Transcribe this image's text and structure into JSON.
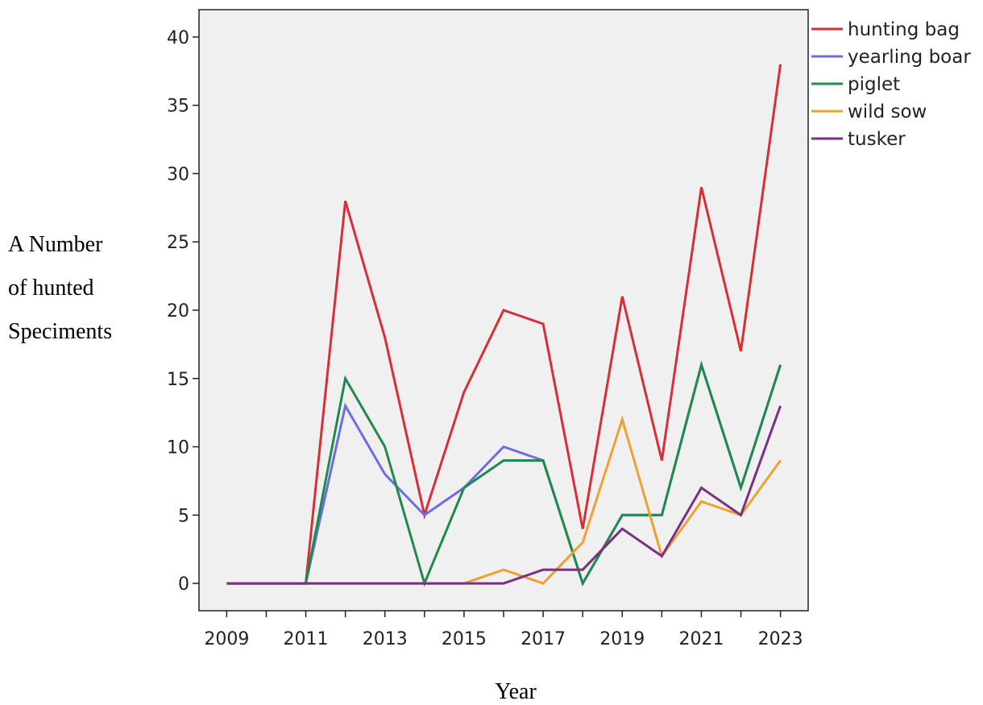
{
  "chart_data": {
    "type": "line",
    "title": "",
    "xlabel": "Year",
    "ylabel_lines": [
      "A Number",
      "of hunted",
      "Speciments"
    ],
    "x": [
      2009,
      2010,
      2011,
      2012,
      2013,
      2014,
      2015,
      2016,
      2017,
      2018,
      2019,
      2020,
      2021,
      2022,
      2023
    ],
    "x_tick_labels": [
      "2009",
      "2011",
      "2013",
      "2015",
      "2017",
      "2019",
      "2021",
      "2023"
    ],
    "y_tick_labels": [
      "0",
      "5",
      "10",
      "15",
      "20",
      "25",
      "30",
      "35",
      "40"
    ],
    "ylim": [
      -2,
      42
    ],
    "xlim": [
      2008.3,
      2023.7
    ],
    "grid": false,
    "legend_placement": "right",
    "background_color": "#f0f0f0",
    "series": [
      {
        "name": "hunting bag",
        "color": "#d62f36",
        "values": [
          0,
          0,
          0,
          28,
          18,
          5,
          14,
          20,
          19,
          4,
          21,
          9,
          29,
          17,
          38
        ]
      },
      {
        "name": "yearling boar",
        "color": "#6b6de6",
        "values": [
          0,
          0,
          0,
          13,
          8,
          5,
          7,
          10,
          9,
          0,
          5,
          5,
          16,
          7,
          16
        ]
      },
      {
        "name": "piglet",
        "color": "#1f8a4c",
        "values": [
          0,
          0,
          0,
          15,
          10,
          0,
          7,
          9,
          9,
          0,
          5,
          5,
          16,
          7,
          16
        ]
      },
      {
        "name": "wild sow",
        "color": "#f0a030",
        "values": [
          0,
          0,
          0,
          0,
          0,
          0,
          0,
          1,
          0,
          3,
          12,
          2,
          6,
          5,
          9
        ]
      },
      {
        "name": "tusker",
        "color": "#7a2f86",
        "values": [
          0,
          0,
          0,
          0,
          0,
          0,
          0,
          0,
          1,
          1,
          4,
          2,
          7,
          5,
          13
        ]
      }
    ]
  }
}
